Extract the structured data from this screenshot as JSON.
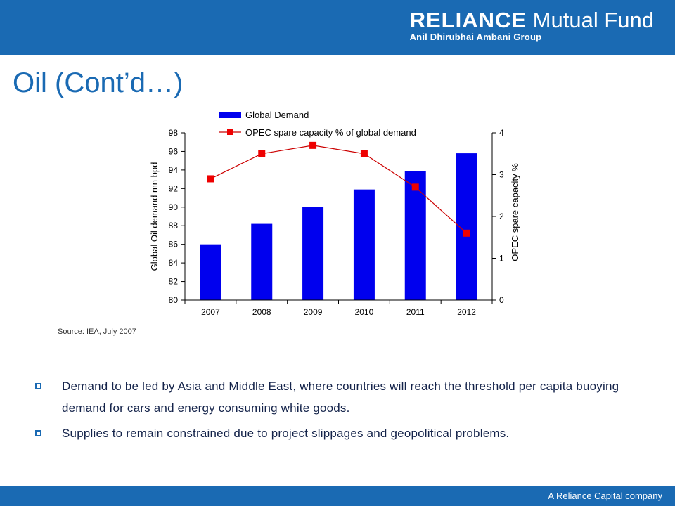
{
  "header": {
    "brand": "RELIANCE",
    "brand_suffix": "Mutual Fund",
    "group": "Anil Dhirubhai Ambani Group"
  },
  "slide": {
    "title": "Oil (Cont’d…)",
    "source": "Source: IEA, July 2007",
    "bullets": [
      "Demand to be led by Asia and Middle East, where countries will reach the threshold per capita buoying demand for cars and energy consuming white goods.",
      "Supplies to remain constrained due to project slippages and geopolitical problems."
    ]
  },
  "footer": {
    "text": "A Reliance Capital company"
  },
  "colors": {
    "brand_blue": "#1a6ab3",
    "bar_fill": "#0000ee",
    "line_color": "#cc0000",
    "marker_color": "#ee0000"
  },
  "chart_data": {
    "type": "bar",
    "categories": [
      "2007",
      "2008",
      "2009",
      "2010",
      "2011",
      "2012"
    ],
    "series": [
      {
        "name": "Global Demand",
        "type": "bar",
        "axis": "left",
        "values": [
          86.0,
          88.2,
          90.0,
          91.9,
          93.9,
          95.8
        ]
      },
      {
        "name": "OPEC spare capacity % of global demand",
        "type": "line",
        "axis": "right",
        "values": [
          2.9,
          3.5,
          3.7,
          3.5,
          2.7,
          1.6
        ]
      }
    ],
    "ylabel": "Global Oil demand mn bpd",
    "ylabel_right": "OPEC spare capacity %",
    "ylim": [
      80,
      98
    ],
    "ylim_right": [
      0,
      4
    ],
    "yticks": [
      80,
      82,
      84,
      86,
      88,
      90,
      92,
      94,
      96,
      98
    ],
    "yticks_right": [
      0,
      1,
      2,
      3,
      4
    ],
    "legend": "top-left",
    "grid": false
  }
}
